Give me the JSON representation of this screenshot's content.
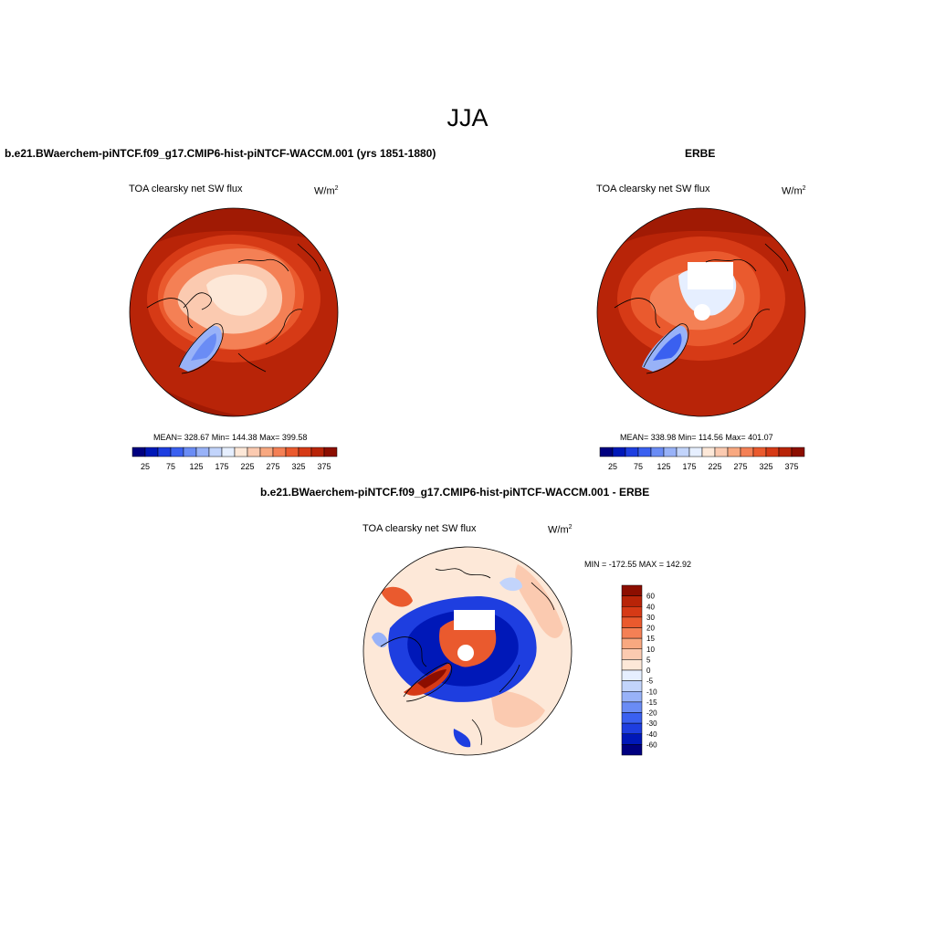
{
  "title": "JJA",
  "panels": [
    {
      "heading": "b.e21.BWaerchem-piNTCF.f09_g17.CMIP6-hist-piNTCF-WACCM.001 (yrs 1851-1880)",
      "variable": "TOA clearsky net SW flux",
      "units": "W/m",
      "units_sup": "2",
      "stats": "MEAN= 328.67  Min= 144.38  Max= 399.58"
    },
    {
      "heading": "ERBE",
      "variable": "TOA clearsky net SW flux",
      "units": "W/m",
      "units_sup": "2",
      "stats": "MEAN= 338.98  Min= 114.56  Max= 401.07"
    },
    {
      "heading": "b.e21.BWaerchem-piNTCF.f09_g17.CMIP6-hist-piNTCF-WACCM.001 - ERBE",
      "variable": "TOA clearsky net SW flux",
      "units": "W/m",
      "units_sup": "2",
      "stats": "MIN = -172.55 MAX = 142.92"
    }
  ],
  "colorbar_abs": {
    "labels": [
      "25",
      "75",
      "125",
      "175",
      "225",
      "275",
      "325",
      "375"
    ],
    "colors": [
      "#000080",
      "#0018b8",
      "#1e3ee0",
      "#3a60f0",
      "#6a8cf5",
      "#98b2f8",
      "#c2d4fb",
      "#e6efff",
      "#fde8d8",
      "#fbcab0",
      "#f8a880",
      "#f48055",
      "#ea5a2e",
      "#d63a16",
      "#b82408",
      "#8c0e00"
    ]
  },
  "colorbar_diff": {
    "labels": [
      "60",
      "40",
      "30",
      "20",
      "15",
      "10",
      "5",
      "0",
      "-5",
      "-10",
      "-15",
      "-20",
      "-30",
      "-40",
      "-60"
    ],
    "colors": [
      "#8c0e00",
      "#b82408",
      "#d63a16",
      "#ea5a2e",
      "#f48055",
      "#f8a880",
      "#fbcab0",
      "#fde8d8",
      "#e6efff",
      "#c2d4fb",
      "#98b2f8",
      "#6a8cf5",
      "#3a60f0",
      "#1e3ee0",
      "#0018b8",
      "#000080"
    ]
  }
}
